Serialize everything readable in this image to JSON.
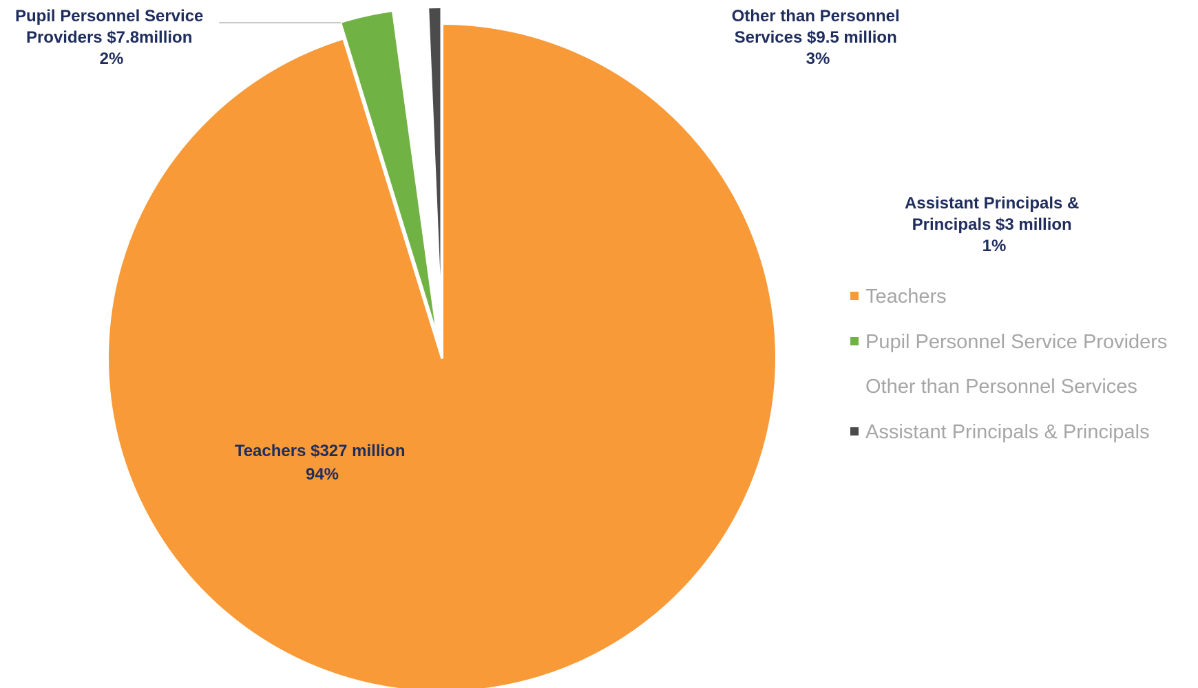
{
  "chart_data": {
    "type": "pie",
    "slices": [
      {
        "name": "Teachers",
        "label_lines": [
          "Teachers $327 million",
          "94%"
        ],
        "value": 327,
        "percent": 94,
        "color": "#f99a38",
        "exploded": false,
        "start_angle_deg": 0,
        "sweep_deg": 342.9
      },
      {
        "name": "Pupil Personnel Service Providers",
        "label_lines": [
          "Pupil Personnel Service",
          "Providers $7.8million",
          "2%"
        ],
        "value": 7.8,
        "percent": 2,
        "color": "#71b245",
        "exploded": true,
        "start_angle_deg": 342.9,
        "sweep_deg": 9.3
      },
      {
        "name": "Other than Personnel Services",
        "label_lines": [
          "Other than Personnel",
          "Services $9.5 million",
          "3%"
        ],
        "value": 9.5,
        "percent": 3,
        "color": "#ffffff",
        "exploded": true,
        "start_angle_deg": 352.2,
        "sweep_deg": 5.4
      },
      {
        "name": "Assistant Principals & Principals",
        "label_lines": [
          "Assistant Principals &",
          "Principals $3 million",
          "1%"
        ],
        "value": 3,
        "percent": 1,
        "color": "#4b4b4b",
        "exploded": true,
        "start_angle_deg": 357.6,
        "sweep_deg": 2.4
      }
    ],
    "legend": {
      "placement": "right",
      "entries": [
        "Teachers",
        "Pupil Personnel Service Providers",
        "Other than Personnel Services",
        "Assistant Principals & Principals"
      ]
    }
  }
}
